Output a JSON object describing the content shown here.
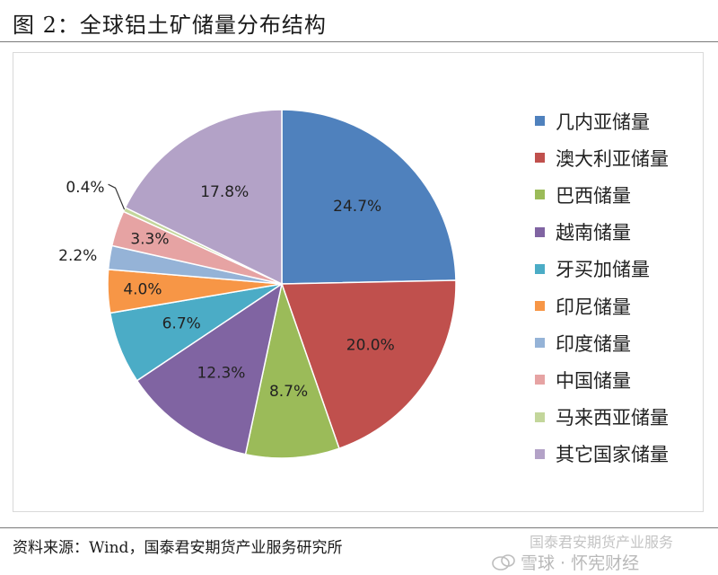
{
  "title": "图 2：全球铝土矿储量分布结构",
  "source": "资料来源：Wind，国泰君安期货产业服务研究所",
  "watermark": {
    "line1": "国泰君安期货产业服务",
    "line2": "雪球 · 怀宪财经"
  },
  "chart_data": {
    "type": "pie",
    "title": "",
    "legend_position": "right",
    "slices": [
      {
        "name": "几内亚储量",
        "value": 24.7,
        "label": "24.7%",
        "color": "#4f81bd"
      },
      {
        "name": "澳大利亚储量",
        "value": 20.0,
        "label": "20.0%",
        "color": "#c0504d"
      },
      {
        "name": "巴西储量",
        "value": 8.7,
        "label": "8.7%",
        "color": "#9bbb59"
      },
      {
        "name": "越南储量",
        "value": 12.3,
        "label": "12.3%",
        "color": "#8064a2"
      },
      {
        "name": "牙买加储量",
        "value": 6.7,
        "label": "6.7%",
        "color": "#4bacc6"
      },
      {
        "name": "印尼储量",
        "value": 4.0,
        "label": "4.0%",
        "color": "#f79646"
      },
      {
        "name": "印度储量",
        "value": 2.2,
        "label": "2.2%",
        "color": "#95b3d7"
      },
      {
        "name": "中国储量",
        "value": 3.3,
        "label": "3.3%",
        "color": "#e6a3a3"
      },
      {
        "name": "马来西亚储量",
        "value": 0.4,
        "label": "0.4%",
        "color": "#c3d69b"
      },
      {
        "name": "其它国家储量",
        "value": 17.8,
        "label": "17.8%",
        "color": "#b3a2c7"
      }
    ]
  }
}
